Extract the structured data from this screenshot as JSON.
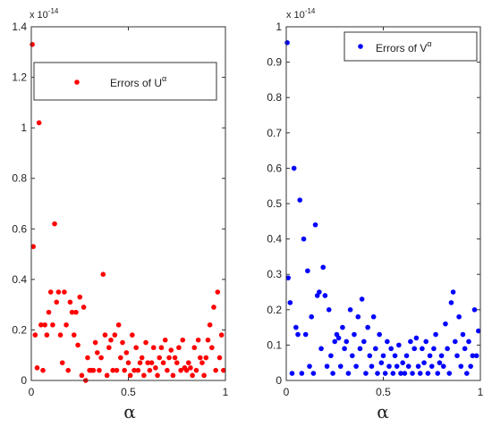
{
  "chart_data": [
    {
      "type": "scatter",
      "title": "",
      "xlabel": "α",
      "ylabel": "",
      "xlim": [
        0,
        1
      ],
      "ylim": [
        0,
        1.4
      ],
      "xticks": [
        "0",
        "0.5",
        "1"
      ],
      "yticks": [
        "0",
        "0.2",
        "0.4",
        "0.6",
        "0.8",
        "1",
        "1.2",
        "1.4"
      ],
      "scale_note": "x 10",
      "scale_exp": "-14",
      "legend_position": "upper-right",
      "color": "#ff0000",
      "series": [
        {
          "name": "Errors of U",
          "name_sup": "α",
          "points": [
            [
              0.005,
              1.33
            ],
            [
              0.01,
              0.53
            ],
            [
              0.02,
              0.18
            ],
            [
              0.03,
              0.05
            ],
            [
              0.04,
              1.02
            ],
            [
              0.05,
              0.22
            ],
            [
              0.06,
              0.04
            ],
            [
              0.07,
              0.22
            ],
            [
              0.08,
              0.18
            ],
            [
              0.09,
              0.27
            ],
            [
              0.1,
              0.35
            ],
            [
              0.11,
              0.22
            ],
            [
              0.12,
              0.62
            ],
            [
              0.13,
              0.31
            ],
            [
              0.14,
              0.35
            ],
            [
              0.15,
              0.18
            ],
            [
              0.16,
              0.07
            ],
            [
              0.17,
              0.35
            ],
            [
              0.18,
              0.22
            ],
            [
              0.19,
              0.04
            ],
            [
              0.2,
              0.31
            ],
            [
              0.21,
              0.27
            ],
            [
              0.22,
              0.18
            ],
            [
              0.23,
              0.27
            ],
            [
              0.24,
              0.14
            ],
            [
              0.25,
              0.33
            ],
            [
              0.26,
              0.02
            ],
            [
              0.27,
              0.29
            ],
            [
              0.28,
              0.0
            ],
            [
              0.29,
              0.09
            ],
            [
              0.3,
              0.04
            ],
            [
              0.31,
              0.04
            ],
            [
              0.32,
              0.04
            ],
            [
              0.33,
              0.15
            ],
            [
              0.34,
              0.11
            ],
            [
              0.35,
              0.04
            ],
            [
              0.36,
              0.09
            ],
            [
              0.37,
              0.42
            ],
            [
              0.38,
              0.18
            ],
            [
              0.39,
              0.02
            ],
            [
              0.4,
              0.13
            ],
            [
              0.41,
              0.16
            ],
            [
              0.42,
              0.04
            ],
            [
              0.43,
              0.18
            ],
            [
              0.44,
              0.04
            ],
            [
              0.45,
              0.22
            ],
            [
              0.46,
              0.09
            ],
            [
              0.47,
              0.15
            ],
            [
              0.48,
              0.04
            ],
            [
              0.49,
              0.11
            ],
            [
              0.5,
              0.07
            ],
            [
              0.51,
              0.02
            ],
            [
              0.52,
              0.18
            ],
            [
              0.53,
              0.04
            ],
            [
              0.54,
              0.13
            ],
            [
              0.55,
              0.04
            ],
            [
              0.56,
              0.07
            ],
            [
              0.57,
              0.09
            ],
            [
              0.58,
              0.02
            ],
            [
              0.59,
              0.15
            ],
            [
              0.6,
              0.07
            ],
            [
              0.61,
              0.04
            ],
            [
              0.62,
              0.07
            ],
            [
              0.63,
              0.13
            ],
            [
              0.64,
              0.05
            ],
            [
              0.65,
              0.02
            ],
            [
              0.66,
              0.09
            ],
            [
              0.67,
              0.13
            ],
            [
              0.68,
              0.07
            ],
            [
              0.69,
              0.16
            ],
            [
              0.7,
              0.04
            ],
            [
              0.71,
              0.09
            ],
            [
              0.72,
              0.12
            ],
            [
              0.73,
              0.02
            ],
            [
              0.74,
              0.09
            ],
            [
              0.75,
              0.07
            ],
            [
              0.76,
              0.13
            ],
            [
              0.77,
              0.04
            ],
            [
              0.78,
              0.16
            ],
            [
              0.79,
              0.05
            ],
            [
              0.8,
              0.04
            ],
            [
              0.81,
              0.07
            ],
            [
              0.82,
              0.05
            ],
            [
              0.83,
              0.02
            ],
            [
              0.84,
              0.13
            ],
            [
              0.85,
              0.04
            ],
            [
              0.86,
              0.16
            ],
            [
              0.87,
              0.09
            ],
            [
              0.88,
              0.07
            ],
            [
              0.89,
              0.02
            ],
            [
              0.9,
              0.09
            ],
            [
              0.91,
              0.16
            ],
            [
              0.92,
              0.22
            ],
            [
              0.93,
              0.13
            ],
            [
              0.94,
              0.29
            ],
            [
              0.95,
              0.04
            ],
            [
              0.96,
              0.35
            ],
            [
              0.97,
              0.09
            ],
            [
              0.98,
              0.18
            ],
            [
              0.99,
              0.04
            ]
          ]
        }
      ]
    },
    {
      "type": "scatter",
      "title": "",
      "xlabel": "α",
      "ylabel": "",
      "xlim": [
        0,
        1
      ],
      "ylim": [
        0,
        1
      ],
      "xticks": [
        "0",
        "0.5",
        "1"
      ],
      "yticks": [
        "0",
        "0.1",
        "0.2",
        "0.3",
        "0.4",
        "0.5",
        "0.6",
        "0.7",
        "0.8",
        "0.9",
        "1"
      ],
      "scale_note": "x 10",
      "scale_exp": "-14",
      "legend_position": "upper-right",
      "color": "#0000ff",
      "series": [
        {
          "name": "Errors of V",
          "name_sup": "α",
          "points": [
            [
              0.005,
              0.955
            ],
            [
              0.01,
              0.29
            ],
            [
              0.02,
              0.22
            ],
            [
              0.03,
              0.02
            ],
            [
              0.04,
              0.6
            ],
            [
              0.05,
              0.15
            ],
            [
              0.06,
              0.13
            ],
            [
              0.07,
              0.51
            ],
            [
              0.08,
              0.02
            ],
            [
              0.09,
              0.4
            ],
            [
              0.1,
              0.13
            ],
            [
              0.11,
              0.31
            ],
            [
              0.12,
              0.04
            ],
            [
              0.13,
              0.18
            ],
            [
              0.14,
              0.02
            ],
            [
              0.15,
              0.44
            ],
            [
              0.16,
              0.24
            ],
            [
              0.17,
              0.25
            ],
            [
              0.18,
              0.09
            ],
            [
              0.19,
              0.32
            ],
            [
              0.2,
              0.24
            ],
            [
              0.21,
              0.04
            ],
            [
              0.22,
              0.2
            ],
            [
              0.23,
              0.07
            ],
            [
              0.24,
              0.02
            ],
            [
              0.25,
              0.11
            ],
            [
              0.26,
              0.13
            ],
            [
              0.27,
              0.12
            ],
            [
              0.28,
              0.04
            ],
            [
              0.29,
              0.15
            ],
            [
              0.3,
              0.09
            ],
            [
              0.31,
              0.11
            ],
            [
              0.32,
              0.02
            ],
            [
              0.33,
              0.2
            ],
            [
              0.34,
              0.07
            ],
            [
              0.35,
              0.13
            ],
            [
              0.36,
              0.04
            ],
            [
              0.37,
              0.18
            ],
            [
              0.38,
              0.09
            ],
            [
              0.39,
              0.23
            ],
            [
              0.4,
              0.11
            ],
            [
              0.41,
              0.02
            ],
            [
              0.42,
              0.15
            ],
            [
              0.43,
              0.07
            ],
            [
              0.44,
              0.04
            ],
            [
              0.45,
              0.18
            ],
            [
              0.46,
              0.09
            ],
            [
              0.47,
              0.02
            ],
            [
              0.48,
              0.13
            ],
            [
              0.49,
              0.05
            ],
            [
              0.5,
              0.07
            ],
            [
              0.51,
              0.02
            ],
            [
              0.52,
              0.11
            ],
            [
              0.53,
              0.04
            ],
            [
              0.54,
              0.09
            ],
            [
              0.55,
              0.02
            ],
            [
              0.56,
              0.07
            ],
            [
              0.57,
              0.04
            ],
            [
              0.58,
              0.1
            ],
            [
              0.59,
              0.02
            ],
            [
              0.6,
              0.05
            ],
            [
              0.61,
              0.02
            ],
            [
              0.62,
              0.07
            ],
            [
              0.63,
              0.04
            ],
            [
              0.64,
              0.11
            ],
            [
              0.65,
              0.02
            ],
            [
              0.66,
              0.09
            ],
            [
              0.67,
              0.12
            ],
            [
              0.68,
              0.04
            ],
            [
              0.69,
              0.02
            ],
            [
              0.7,
              0.09
            ],
            [
              0.71,
              0.05
            ],
            [
              0.72,
              0.11
            ],
            [
              0.73,
              0.02
            ],
            [
              0.74,
              0.07
            ],
            [
              0.75,
              0.04
            ],
            [
              0.76,
              0.09
            ],
            [
              0.77,
              0.13
            ],
            [
              0.78,
              0.02
            ],
            [
              0.79,
              0.05
            ],
            [
              0.8,
              0.07
            ],
            [
              0.81,
              0.04
            ],
            [
              0.82,
              0.16
            ],
            [
              0.83,
              0.09
            ],
            [
              0.84,
              0.02
            ],
            [
              0.85,
              0.22
            ],
            [
              0.86,
              0.25
            ],
            [
              0.87,
              0.11
            ],
            [
              0.88,
              0.07
            ],
            [
              0.89,
              0.18
            ],
            [
              0.9,
              0.04
            ],
            [
              0.91,
              0.13
            ],
            [
              0.92,
              0.09
            ],
            [
              0.93,
              0.02
            ],
            [
              0.94,
              0.11
            ],
            [
              0.95,
              0.04
            ],
            [
              0.96,
              0.07
            ],
            [
              0.97,
              0.2
            ],
            [
              0.98,
              0.07
            ],
            [
              0.99,
              0.14
            ]
          ]
        }
      ]
    }
  ]
}
